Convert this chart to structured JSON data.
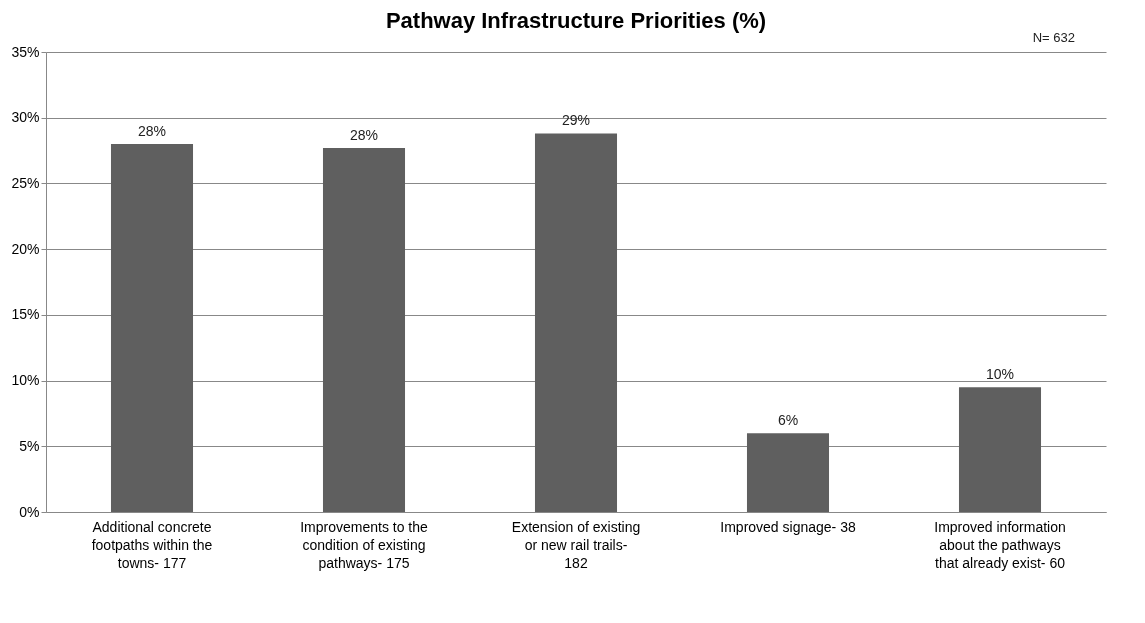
{
  "chart_data": {
    "type": "bar",
    "title": "Pathway Infrastructure Priorities (%)",
    "annotations": [
      "N= 632"
    ],
    "categories": [
      "Additional concrete footpaths within the towns- 177",
      "Improvements to the condition of existing pathways- 175",
      "Extension of existing or new rail trails- 182",
      "Improved signage- 38",
      "Improved information about the pathways that already exist- 60"
    ],
    "values": [
      28.0,
      27.7,
      28.8,
      6.0,
      9.5
    ],
    "value_labels": [
      "28%",
      "28%",
      "29%",
      "6%",
      "10%"
    ],
    "color": "#5f5f5f",
    "ylim": [
      0,
      35
    ],
    "yticks": [
      {
        "value": 0,
        "label": "0%"
      },
      {
        "value": 5,
        "label": "5%"
      },
      {
        "value": 10,
        "label": "10%"
      },
      {
        "value": 15,
        "label": "15%"
      },
      {
        "value": 20,
        "label": "20%"
      },
      {
        "value": 25,
        "label": "25%"
      },
      {
        "value": 30,
        "label": "30%"
      },
      {
        "value": 35,
        "label": "35%"
      }
    ],
    "grid": "y"
  }
}
